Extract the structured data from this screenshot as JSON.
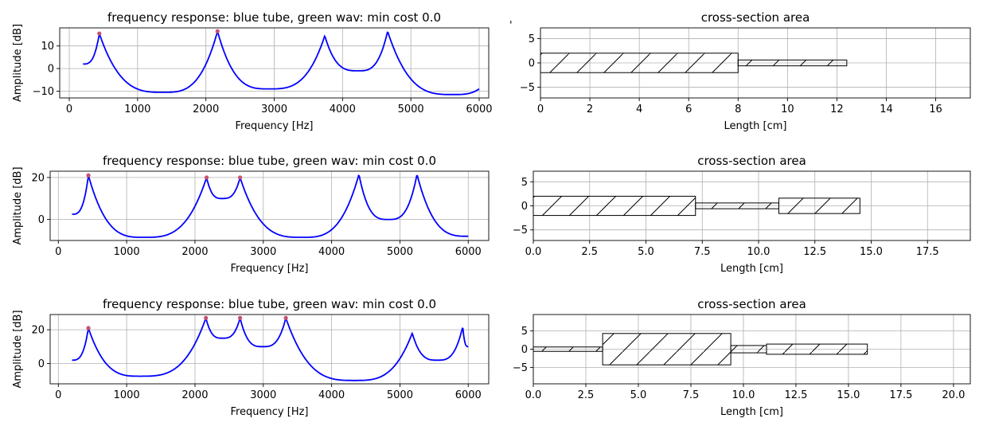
{
  "figure_mark": "'",
  "colors": {
    "tube_curve": "#0000ff",
    "peak_marker": "#c8506e",
    "grid": "#b0b0b0",
    "box_stroke": "#000000"
  },
  "chart_data": [
    {
      "type": "line",
      "kind": "freq",
      "title": "frequency response: blue tube, green wav: min cost 0.0",
      "xlabel": "Frequency [Hz]",
      "ylabel": "Amplitude [dB]",
      "xlim": [
        -140,
        6140
      ],
      "ylim": [
        -13,
        18
      ],
      "xticks": [
        0,
        1000,
        2000,
        3000,
        4000,
        5000,
        6000
      ],
      "yticks": [
        -10,
        0,
        10
      ],
      "xtick_labels": [
        "0",
        "1000",
        "2000",
        "3000",
        "4000",
        "5000",
        "6000"
      ],
      "ytick_labels": [
        "−10",
        "0",
        "10"
      ],
      "x_range": [
        200,
        6000
      ],
      "curve_key": [
        [
          200,
          2
        ],
        [
          440,
          15.5
        ],
        [
          1380,
          -10.5
        ],
        [
          2170,
          16.5
        ],
        [
          2920,
          -9
        ],
        [
          3740,
          14.5
        ],
        [
          4230,
          -1
        ],
        [
          4660,
          16.5
        ],
        [
          5620,
          -11.5
        ],
        [
          6000,
          -9
        ]
      ],
      "peak_markers": [
        [
          440,
          15.5
        ],
        [
          2170,
          16.5
        ]
      ],
      "grid": true
    },
    {
      "type": "bar",
      "kind": "tube",
      "title": "cross-section area",
      "xlabel": "Length [cm]",
      "ylabel": "",
      "xlim": [
        0,
        17.4
      ],
      "ylim": [
        -7.2,
        7.2
      ],
      "xticks": [
        0,
        2,
        4,
        6,
        8,
        10,
        12,
        14,
        16
      ],
      "yticks": [
        -5,
        0,
        5
      ],
      "xtick_labels": [
        "0",
        "2",
        "4",
        "6",
        "8",
        "10",
        "12",
        "14",
        "16"
      ],
      "ytick_labels": [
        "−5",
        "0",
        "5"
      ],
      "sections": [
        {
          "start": 0,
          "end": 8.0,
          "area": 4.0
        },
        {
          "start": 8.0,
          "end": 12.4,
          "area": 1.2
        }
      ],
      "grid": true
    },
    {
      "type": "line",
      "kind": "freq",
      "title": "frequency response: blue tube, green wav: min cost 0.0",
      "xlabel": "Frequency [Hz]",
      "ylabel": "Amplitude [dB]",
      "xlim": [
        -120,
        6300
      ],
      "ylim": [
        -10,
        23
      ],
      "xticks": [
        0,
        1000,
        2000,
        3000,
        4000,
        5000,
        6000
      ],
      "yticks": [
        0,
        20
      ],
      "xtick_labels": [
        "0",
        "1000",
        "2000",
        "3000",
        "4000",
        "5000",
        "6000"
      ],
      "ytick_labels": [
        "0",
        "20"
      ],
      "x_range": [
        200,
        6000
      ],
      "curve_key": [
        [
          200,
          2.5
        ],
        [
          440,
          21
        ],
        [
          1250,
          -8.5
        ],
        [
          2170,
          20
        ],
        [
          2400,
          10
        ],
        [
          2660,
          20
        ],
        [
          3570,
          -8.5
        ],
        [
          4400,
          21.5
        ],
        [
          4830,
          0
        ],
        [
          5250,
          21.5
        ],
        [
          6000,
          -8
        ]
      ],
      "peak_markers": [
        [
          440,
          21
        ],
        [
          2170,
          20
        ],
        [
          2660,
          20
        ]
      ],
      "grid": true
    },
    {
      "type": "bar",
      "kind": "tube",
      "title": "cross-section area",
      "xlabel": "Length [cm]",
      "ylabel": "",
      "xlim": [
        0,
        19.4
      ],
      "ylim": [
        -7.2,
        7.2
      ],
      "xticks": [
        0,
        2.5,
        5,
        7.5,
        10,
        12.5,
        15,
        17.5
      ],
      "yticks": [
        -5,
        0,
        5
      ],
      "xtick_labels": [
        "0.0",
        "2.5",
        "5.0",
        "7.5",
        "10.0",
        "12.5",
        "15.0",
        "17.5"
      ],
      "ytick_labels": [
        "−5",
        "0",
        "5"
      ],
      "sections": [
        {
          "start": 0,
          "end": 7.2,
          "area": 4.0
        },
        {
          "start": 7.2,
          "end": 10.9,
          "area": 1.2
        },
        {
          "start": 10.9,
          "end": 14.5,
          "area": 3.2
        }
      ],
      "grid": true
    },
    {
      "type": "line",
      "kind": "freq",
      "title": "frequency response: blue tube, green wav: min cost 0.0",
      "xlabel": "Frequency [Hz]",
      "ylabel": "Amplitude [dB]",
      "xlim": [
        -120,
        6300
      ],
      "ylim": [
        -12,
        29
      ],
      "xticks": [
        0,
        1000,
        2000,
        3000,
        4000,
        5000,
        6000
      ],
      "yticks": [
        0,
        20
      ],
      "xtick_labels": [
        "0",
        "1000",
        "2000",
        "3000",
        "4000",
        "5000",
        "6000"
      ],
      "ytick_labels": [
        "0",
        "20"
      ],
      "x_range": [
        200,
        6000
      ],
      "curve_key": [
        [
          200,
          2
        ],
        [
          440,
          21
        ],
        [
          1200,
          -7.5
        ],
        [
          2160,
          27
        ],
        [
          2400,
          15
        ],
        [
          2660,
          27
        ],
        [
          2990,
          10
        ],
        [
          3330,
          27
        ],
        [
          4340,
          -10
        ],
        [
          5180,
          18
        ],
        [
          5550,
          2
        ],
        [
          5920,
          22
        ],
        [
          6000,
          10
        ]
      ],
      "peak_markers": [
        [
          440,
          21
        ],
        [
          2160,
          27
        ],
        [
          2660,
          27
        ],
        [
          3330,
          27
        ]
      ],
      "grid": true
    },
    {
      "type": "bar",
      "kind": "tube",
      "title": "cross-section area",
      "xlabel": "Length [cm]",
      "ylabel": "",
      "xlim": [
        0,
        20.8
      ],
      "ylim": [
        -9.5,
        9.5
      ],
      "xticks": [
        0,
        2.5,
        5,
        7.5,
        10,
        12.5,
        15,
        17.5,
        20
      ],
      "yticks": [
        -5,
        0,
        5
      ],
      "xtick_labels": [
        "0.0",
        "2.5",
        "5.0",
        "7.5",
        "10.0",
        "12.5",
        "15.0",
        "17.5",
        "20.0"
      ],
      "ytick_labels": [
        "−5",
        "0",
        "5"
      ],
      "sections": [
        {
          "start": 0,
          "end": 3.3,
          "area": 1.2
        },
        {
          "start": 3.3,
          "end": 9.4,
          "area": 8.6
        },
        {
          "start": 9.4,
          "end": 11.1,
          "area": 2.0
        },
        {
          "start": 11.1,
          "end": 15.9,
          "area": 2.8
        }
      ],
      "grid": true
    }
  ]
}
